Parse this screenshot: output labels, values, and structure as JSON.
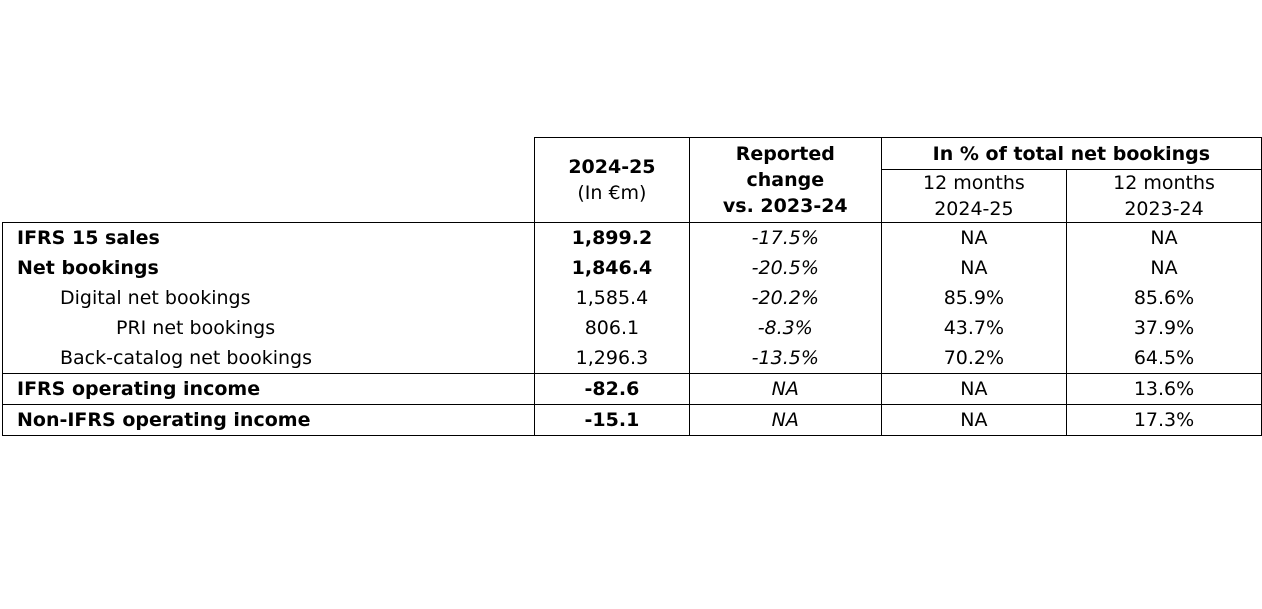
{
  "header": {
    "value_col_title": "2024-25",
    "value_col_unit": "(In €m)",
    "change_col_line1": "Reported",
    "change_col_line2": "change",
    "change_col_line3": "vs. 2023-24",
    "pct_group_title": "In % of total net bookings",
    "pct_col1_line1": "12 months",
    "pct_col1_line2": "2024-25",
    "pct_col2_line1": "12 months",
    "pct_col2_line2": "2023-24"
  },
  "rows": [
    {
      "label": "IFRS 15 sales",
      "value": "1,899.2",
      "change": "-17.5%",
      "pct_2024_25": "NA",
      "pct_2023_24": "NA"
    },
    {
      "label": "Net bookings",
      "value": "1,846.4",
      "change": "-20.5%",
      "pct_2024_25": "NA",
      "pct_2023_24": "NA"
    },
    {
      "label": "Digital net bookings",
      "value": "1,585.4",
      "change": "-20.2%",
      "pct_2024_25": "85.9%",
      "pct_2023_24": "85.6%"
    },
    {
      "label": "PRI net bookings",
      "value": "806.1",
      "change": "-8.3%",
      "pct_2024_25": "43.7%",
      "pct_2023_24": "37.9%"
    },
    {
      "label": "Back-catalog net bookings",
      "value": "1,296.3",
      "change": "-13.5%",
      "pct_2024_25": "70.2%",
      "pct_2023_24": "64.5%"
    },
    {
      "label": "IFRS operating income",
      "value": "-82.6",
      "change": "NA",
      "pct_2024_25": "NA",
      "pct_2023_24": "13.6%"
    },
    {
      "label": "Non-IFRS operating income",
      "value": "-15.1",
      "change": "NA",
      "pct_2024_25": "NA",
      "pct_2023_24": "17.3%"
    }
  ]
}
